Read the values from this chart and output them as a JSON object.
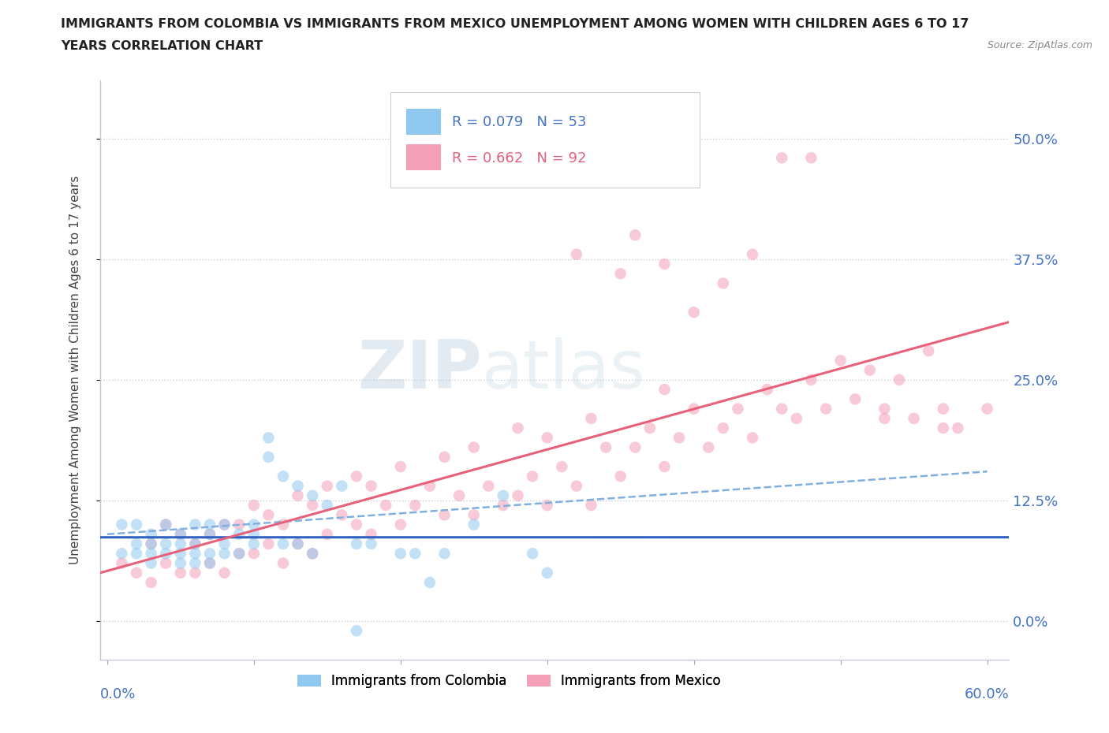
{
  "title_line1": "IMMIGRANTS FROM COLOMBIA VS IMMIGRANTS FROM MEXICO UNEMPLOYMENT AMONG WOMEN WITH CHILDREN AGES 6 TO 17",
  "title_line2": "YEARS CORRELATION CHART",
  "source": "Source: ZipAtlas.com",
  "ylabel": "Unemployment Among Women with Children Ages 6 to 17 years",
  "xlim": [
    -0.005,
    0.615
  ],
  "ylim": [
    -0.04,
    0.56
  ],
  "y_ticks": [
    0.0,
    0.125,
    0.25,
    0.375,
    0.5
  ],
  "colombia_color": "#90c8f0",
  "mexico_color": "#f4a0b8",
  "colombia_line_color": "#3060c0",
  "colombia_dash_color": "#80b0e0",
  "mexico_line_color": "#e8607a",
  "watermark_zip": "ZIP",
  "watermark_atlas": "atlas"
}
